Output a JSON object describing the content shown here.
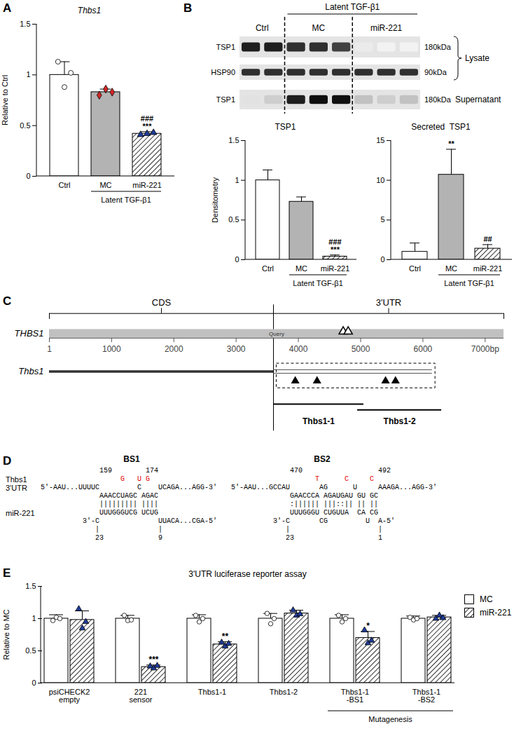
{
  "panel_labels": [
    "A",
    "B",
    "C",
    "D",
    "E"
  ],
  "chart_data": [
    {
      "type": "bar",
      "title": "Thbs1",
      "ylabel": "Relative to Ctrl",
      "categories": [
        "Ctrl",
        "MC",
        "miR-221"
      ],
      "values": [
        1.0,
        0.83,
        0.42
      ],
      "errors": [
        0.13,
        0.03,
        0.02
      ],
      "colors": [
        "#ffffff",
        "#b3b3b3",
        "hatch"
      ],
      "points": [
        [
          1.13,
          0.88,
          1.02
        ],
        [
          0.8,
          0.86,
          0.83
        ],
        [
          0.41,
          0.42,
          0.43
        ]
      ],
      "marker": [
        "circle",
        "diamond",
        "triangle"
      ],
      "point_colors": [
        "#ffffff",
        "#d62728",
        "#1f3c99"
      ],
      "annotations": [
        {
          "category": "miR-221",
          "texts": [
            "###",
            "***"
          ]
        }
      ],
      "group_label": {
        "text": "Latent TGF-β1",
        "categories": [
          "MC",
          "miR-221"
        ]
      },
      "ylim": [
        0,
        1.5
      ],
      "yticks": [
        0,
        0.5,
        1,
        1.5
      ]
    },
    {
      "type": "bar",
      "title": "TSP1",
      "ylabel": "Densitometry",
      "categories": [
        "Ctrl",
        "MC",
        "miR-221"
      ],
      "values": [
        1.0,
        0.73,
        0.04
      ],
      "errors": [
        0.13,
        0.06,
        0.02
      ],
      "colors": [
        "#ffffff",
        "#b3b3b3",
        "hatch"
      ],
      "annotations": [
        {
          "category": "miR-221",
          "texts": [
            "###",
            "***"
          ]
        }
      ],
      "group_label": {
        "text": "Latent TGF-β1",
        "categories": [
          "MC",
          "miR-221"
        ]
      },
      "ylim": [
        0,
        1.5
      ],
      "yticks": [
        0,
        0.5,
        1,
        1.5
      ]
    },
    {
      "type": "bar",
      "title": "Secreted  TSP1",
      "categories": [
        "Ctrl",
        "MC",
        "miR-221"
      ],
      "values": [
        1.0,
        10.7,
        1.4
      ],
      "errors": [
        1.1,
        3.2,
        0.5
      ],
      "colors": [
        "#ffffff",
        "#b3b3b3",
        "hatch"
      ],
      "annotations": [
        {
          "category": "MC",
          "texts": [
            "**"
          ]
        },
        {
          "category": "miR-221",
          "texts": [
            "##"
          ]
        }
      ],
      "group_label": {
        "text": "Latent TGF-β1",
        "categories": [
          "MC",
          "miR-221"
        ]
      },
      "ylim": [
        0,
        15
      ],
      "yticks": [
        0,
        5,
        10,
        15
      ]
    },
    {
      "type": "bar",
      "title": "3'UTR luciferase reporter assay",
      "ylabel": "Relative to MC",
      "categories": [
        "psiCHECK2\nempty",
        "221\nsensor",
        "Thbs1-1",
        "Thbs1-2",
        "Thbs1-1\n-BS1",
        "Thbs1-1\n-BS2"
      ],
      "series": [
        {
          "name": "MC",
          "color": "#ffffff",
          "values": [
            1.0,
            1.0,
            1.0,
            1.0,
            1.0,
            1.0
          ],
          "errors": [
            0.06,
            0.05,
            0.06,
            0.08,
            0.06,
            0.04
          ],
          "points": [
            [
              0.97,
              1.02,
              1.0
            ],
            [
              1.05,
              0.97,
              0.98
            ],
            [
              1.05,
              0.95,
              1.0
            ],
            [
              1.08,
              0.92,
              1.0
            ],
            [
              1.05,
              0.95,
              1.0
            ],
            [
              1.02,
              0.98,
              1.0
            ]
          ],
          "marker": "circle",
          "point_color": "#ffffff"
        },
        {
          "name": "miR-221",
          "color": "hatch",
          "values": [
            0.98,
            0.25,
            0.6,
            1.08,
            0.7,
            1.02
          ],
          "errors": [
            0.14,
            0.03,
            0.04,
            0.05,
            0.1,
            0.03
          ],
          "points": [
            [
              1.15,
              0.85,
              0.95
            ],
            [
              0.26,
              0.23,
              0.27
            ],
            [
              0.63,
              0.57,
              0.61
            ],
            [
              1.13,
              1.05,
              1.07
            ],
            [
              0.82,
              0.62,
              0.66
            ],
            [
              1.0,
              1.05,
              1.01
            ]
          ],
          "marker": "triangle",
          "point_color": "#1f3c99"
        }
      ],
      "annotations": [
        {
          "category": "221\nsensor",
          "series": "miR-221",
          "texts": [
            "***"
          ]
        },
        {
          "category": "Thbs1-1",
          "series": "miR-221",
          "texts": [
            "**"
          ]
        },
        {
          "category": "Thbs1-1\n-BS1",
          "series": "miR-221",
          "texts": [
            "*"
          ]
        }
      ],
      "group_label": {
        "text": "Mutagenesis",
        "categories": [
          "Thbs1-1\n-BS1",
          "Thbs1-1\n-BS2"
        ]
      },
      "legend": "right",
      "ylim": [
        0,
        1.5
      ],
      "yticks": [
        0,
        0.5,
        1,
        1.5
      ]
    }
  ],
  "blot": {
    "group_label": {
      "text": "Latent TGF-β1",
      "columns": [
        "MC",
        "miR-221"
      ]
    },
    "columns": [
      {
        "label": "Ctrl",
        "lanes": 2
      },
      {
        "label": "MC",
        "lanes": 3
      },
      {
        "label": "miR-221",
        "lanes": 3
      }
    ],
    "rows": [
      {
        "label": "TSP1",
        "size": "180kDa",
        "intensity": [
          0.9,
          0.9,
          0.85,
          0.85,
          0.8,
          0.15,
          0.1,
          0.1
        ]
      },
      {
        "label": "HSP90",
        "size": "90kDa",
        "intensity": [
          0.85,
          0.85,
          0.85,
          0.85,
          0.85,
          0.85,
          0.85,
          0.85
        ]
      },
      {
        "label": "TSP1",
        "size": "180kDa",
        "intensity": [
          0.2,
          0.3,
          0.9,
          0.95,
          0.95,
          0.35,
          0.3,
          0.35
        ]
      }
    ],
    "fractions": [
      {
        "label": "Lysate",
        "rows": [
          0,
          1
        ]
      },
      {
        "label": "Supernatant",
        "rows": [
          2
        ]
      }
    ]
  },
  "diagram": {
    "xlim": [
      1,
      7300
    ],
    "xticks": [
      1,
      1000,
      2000,
      3000,
      4000,
      5000,
      6000,
      {
        "value": 7000,
        "label": "7000bp"
      }
    ],
    "regions": [
      {
        "label": "CDS",
        "range": [
          1,
          3600
        ]
      },
      {
        "label": "3'UTR",
        "range": [
          3600,
          7300
        ]
      }
    ],
    "tracks": [
      {
        "label": "THBS1",
        "text": "Query",
        "range": [
          1,
          7300
        ],
        "sites": [
          4720,
          4800
        ]
      },
      {
        "label": "Thbs1",
        "cds": [
          1,
          3600
        ],
        "utr": [
          3600,
          6150
        ],
        "sites": [
          3950,
          4300,
          5400,
          5560
        ],
        "box": [
          3650,
          6200
        ]
      }
    ],
    "fragments": [
      {
        "label": "Thbs1-1",
        "range": [
          3600,
          5050
        ]
      },
      {
        "label": "Thbs1-2",
        "range": [
          4950,
          6300
        ]
      }
    ]
  },
  "alignment": {
    "mrna_label": [
      "Thbs1",
      "3'UTR"
    ],
    "mirna_label": "miR-221",
    "sites": [
      {
        "label": "BS1",
        "numbers": "              159        174",
        "mutations": "                   G   U G",
        "lines": [
          "5'-AAU...UUUUC         C    UCAGA...AGG-3'",
          "              AAACCUAGC AGAC",
          "              ||||||||| ||||",
          "              UUUGGGUCG UCUG",
          "          3'-C              UUACA...CGA-5'",
          "             |              |",
          "             23             9"
        ]
      },
      {
        "label": "BS2",
        "numbers": "              470                  492",
        "mutations": "                    T      C     C",
        "lines": [
          "5'-AAU...GCCAU       AG      U     AAAGA...AGG-3'",
          "              GAACCCA AGAUGAU GU GC",
          "              :|||||| |||::|| || ||",
          "              UUUGGGU CUGUUA  CA CG",
          "          3'-C       CG         U  A-5'",
          "             |                     |",
          "             23                    1"
        ]
      }
    ]
  }
}
